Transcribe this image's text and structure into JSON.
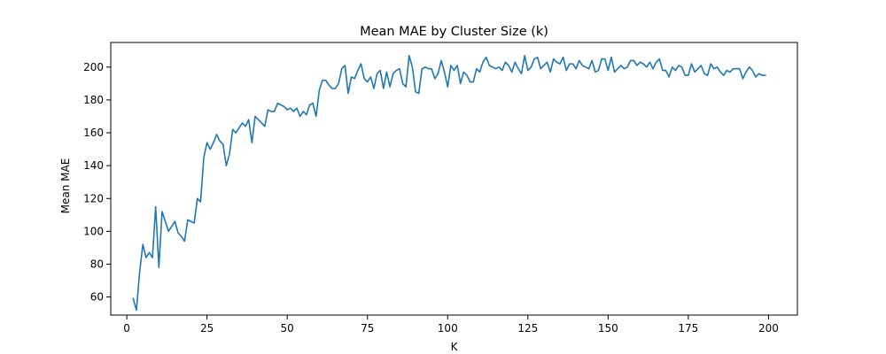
{
  "chart_data": {
    "type": "line",
    "title": "Mean MAE by Cluster Size (k)",
    "xlabel": "K",
    "ylabel": "Mean MAE",
    "xlim": [
      -5,
      209
    ],
    "ylim": [
      49,
      215
    ],
    "x_ticks": [
      0,
      25,
      50,
      75,
      100,
      125,
      150,
      175,
      200
    ],
    "y_ticks": [
      60,
      80,
      100,
      120,
      140,
      160,
      180,
      200
    ],
    "grid": false,
    "legend": "none",
    "line_color": "#1f77b4",
    "series": [
      {
        "x": [
          2,
          3,
          4,
          5,
          6,
          7,
          8,
          9,
          10,
          11,
          12,
          13,
          14,
          15,
          16,
          17,
          18,
          19,
          20,
          21,
          22,
          23,
          24,
          25,
          26,
          27,
          28,
          29,
          30,
          31,
          32,
          33,
          34,
          35,
          36,
          37,
          38,
          39,
          40,
          41,
          42,
          43,
          44,
          45,
          46,
          47,
          48,
          49,
          50,
          51,
          52,
          53,
          54,
          55,
          56,
          57,
          58,
          59,
          60,
          61,
          62,
          63,
          64,
          65,
          66,
          67,
          68,
          69,
          70,
          71,
          72,
          73,
          74,
          75,
          76,
          77,
          78,
          79,
          80,
          81,
          82,
          83,
          84,
          85,
          86,
          87,
          88,
          89,
          90,
          91,
          92,
          93,
          94,
          95,
          96,
          97,
          98,
          99,
          100,
          101,
          102,
          103,
          104,
          105,
          106,
          107,
          108,
          109,
          110,
          111,
          112,
          113,
          114,
          115,
          116,
          117,
          118,
          119,
          120,
          121,
          122,
          123,
          124,
          125,
          126,
          127,
          128,
          129,
          130,
          131,
          132,
          133,
          134,
          135,
          136,
          137,
          138,
          139,
          140,
          141,
          142,
          143,
          144,
          145,
          146,
          147,
          148,
          149,
          150,
          151,
          152,
          153,
          154,
          155,
          156,
          157,
          158,
          159,
          160,
          161,
          162,
          163,
          164,
          165,
          166,
          167,
          168,
          169,
          170,
          171,
          172,
          173,
          174,
          175,
          176,
          177,
          178,
          179,
          180,
          181,
          182,
          183,
          184,
          185,
          186,
          187,
          188,
          189,
          190,
          191,
          192,
          193,
          194,
          195,
          196,
          197,
          198,
          199
        ],
        "values": [
          59,
          52,
          75,
          92,
          84,
          87,
          84,
          115,
          78,
          112,
          106,
          100,
          103,
          106,
          99,
          97,
          94,
          107,
          106,
          105,
          120,
          118,
          145,
          154,
          150,
          154,
          159,
          155,
          153,
          140,
          147,
          162,
          160,
          163,
          166,
          164,
          168,
          154,
          170,
          168,
          166,
          164,
          174,
          173,
          173,
          178,
          177,
          176,
          174,
          175,
          173,
          175,
          170,
          173,
          171,
          177,
          178,
          170,
          186,
          192,
          192,
          189,
          187,
          187,
          190,
          199,
          201,
          184,
          194,
          193,
          198,
          202,
          193,
          191,
          194,
          187,
          196,
          198,
          187,
          197,
          188,
          196,
          198,
          199,
          190,
          188,
          207,
          200,
          185,
          184,
          199,
          200,
          199,
          199,
          193,
          196,
          204,
          197,
          188,
          201,
          198,
          201,
          190,
          197,
          195,
          191,
          191,
          199,
          197,
          203,
          206,
          201,
          200,
          199,
          200,
          198,
          203,
          201,
          197,
          203,
          199,
          196,
          207,
          198,
          200,
          205,
          206,
          199,
          201,
          203,
          197,
          205,
          203,
          202,
          206,
          198,
          202,
          202,
          199,
          204,
          201,
          200,
          199,
          204,
          197,
          198,
          205,
          205,
          198,
          206,
          197,
          199,
          201,
          199,
          200,
          204,
          204,
          201,
          203,
          202,
          200,
          203,
          199,
          203,
          205,
          198,
          198,
          194,
          200,
          198,
          201,
          200,
          195,
          195,
          202,
          197,
          199,
          201,
          196,
          195,
          202,
          199,
          200,
          197,
          195,
          198,
          197,
          199,
          199,
          199,
          193,
          197,
          200,
          198,
          194,
          196,
          195,
          195
        ]
      }
    ]
  }
}
